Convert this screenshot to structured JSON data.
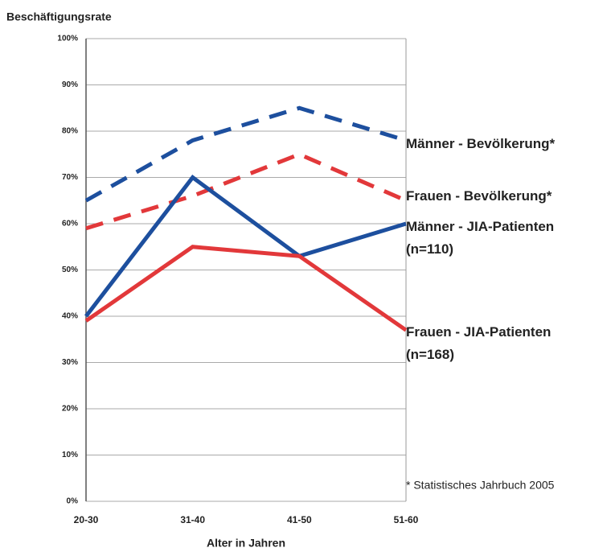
{
  "chart_data": {
    "type": "line",
    "ylabel": "Beschäftigungsrate",
    "xlabel": "Alter in Jahren",
    "annotation": "* Statistisches Jahrbuch 2005",
    "categories": [
      "20-30",
      "31-40",
      "41-50",
      "51-60"
    ],
    "series": [
      {
        "name": "Männer - Bevölkerung*",
        "color": "#1d4f9e",
        "dashed": true,
        "values": [
          65,
          78,
          85,
          78
        ]
      },
      {
        "name": "Frauen - Bevölkerung*",
        "color": "#e2383a",
        "dashed": true,
        "values": [
          59,
          66,
          75,
          65
        ]
      },
      {
        "name": "Männer - JIA-Patienten\n(n=110)",
        "color": "#1d4f9e",
        "dashed": false,
        "values": [
          40,
          70,
          53,
          60
        ]
      },
      {
        "name": "Frauen - JIA-Patienten\n(n=168)",
        "color": "#e2383a",
        "dashed": false,
        "values": [
          39,
          55,
          53,
          37
        ]
      }
    ],
    "ylim": [
      0,
      100
    ],
    "yticks": [
      {
        "value": 0,
        "label": "0%"
      },
      {
        "value": 10,
        "label": "10%"
      },
      {
        "value": 20,
        "label": "20%"
      },
      {
        "value": 30,
        "label": "30%"
      },
      {
        "value": 40,
        "label": "40%"
      },
      {
        "value": 50,
        "label": "50%"
      },
      {
        "value": 60,
        "label": "60%"
      },
      {
        "value": 70,
        "label": "70%"
      },
      {
        "value": 80,
        "label": "80%"
      },
      {
        "value": 90,
        "label": "90%"
      },
      {
        "value": 100,
        "label": "100%"
      }
    ],
    "grid": true
  }
}
